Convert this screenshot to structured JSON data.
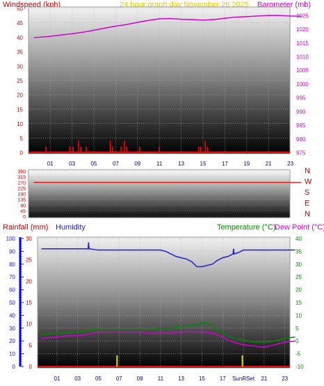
{
  "header": {
    "windspeed_label": "Windspeed (kph)",
    "title": "24 hour graph day   November 26 2025",
    "barometer_label": "Barometer (mb)"
  },
  "colors": {
    "windspeed_label": "#cc0000",
    "title": "#e6c800",
    "barometer": "#d000d0",
    "wind": "#ff0000",
    "direction": "#ff0000",
    "compass": "#c00000",
    "rainfall_label": "#cc0000",
    "humidity": "#2020d0",
    "temperature": "#008800",
    "dew_point": "#d000d0",
    "rain_marker": "#e0e000"
  },
  "chart_data": [
    {
      "type": "bar",
      "panel": "wind-barometer",
      "xlabel": "",
      "x_ticks": [
        "01",
        "03",
        "05",
        "07",
        "09",
        "11",
        "13",
        "15",
        "17",
        "19",
        "21",
        "23"
      ],
      "xlim": [
        0,
        24
      ],
      "ylabel": "Windspeed (kph)",
      "ylim": [
        0,
        50
      ],
      "y_ticks": [
        0,
        5,
        10,
        15,
        20,
        25,
        30,
        35,
        40,
        45,
        50
      ],
      "y2label": "Barometer (mb)",
      "y2lim": [
        975,
        1027.5
      ],
      "y2_ticks": [
        975,
        980,
        985,
        990,
        995,
        1000,
        1005,
        1010,
        1015,
        1020,
        1025
      ],
      "series": [
        {
          "name": "Windspeed (kph)",
          "type": "bar",
          "axis": "left",
          "x": [
            0.6,
            2.8,
            3.1,
            3.6,
            3.8,
            4.3,
            6.5,
            6.7,
            7.5,
            7.8,
            8.0,
            9.2,
            11.0,
            14.6,
            14.8,
            15.2,
            15.4
          ],
          "values": [
            2,
            2,
            2,
            4,
            2,
            2,
            4,
            2,
            2,
            4,
            2,
            2,
            2,
            2,
            2,
            4,
            2
          ]
        },
        {
          "name": "Barometer (mb)",
          "type": "line",
          "axis": "right",
          "x": [
            -0.5,
            1,
            2,
            3,
            4,
            5,
            6,
            7,
            8,
            9,
            10,
            11,
            12,
            13,
            14,
            15,
            16,
            17,
            18,
            19,
            20,
            21,
            22,
            23,
            24
          ],
          "values": [
            1016.8,
            1017.3,
            1017.8,
            1018.2,
            1018.8,
            1019.5,
            1020.3,
            1021.0,
            1021.6,
            1022.4,
            1023.1,
            1023.7,
            1023.8,
            1023.5,
            1023.4,
            1023.2,
            1023.4,
            1023.9,
            1024.3,
            1024.5,
            1024.7,
            1024.9,
            1024.9,
            1024.7,
            1024.6
          ]
        }
      ]
    },
    {
      "type": "line",
      "panel": "wind-direction",
      "ylim": [
        0,
        360
      ],
      "y_ticks": [
        0,
        45,
        90,
        135,
        180,
        225,
        270,
        315,
        360
      ],
      "compass": [
        "N",
        "W",
        "S",
        "E",
        "N"
      ],
      "series": [
        {
          "name": "Wind direction",
          "x": [
            -0.5,
            24
          ],
          "values": [
            270,
            270
          ]
        }
      ]
    },
    {
      "type": "line",
      "panel": "temperature-humidity",
      "x_ticks": [
        "01",
        "03",
        "05",
        "07",
        "09",
        "11",
        "13",
        "15",
        "17",
        "SunRSet",
        "21",
        "23"
      ],
      "xlim": [
        0,
        24
      ],
      "humidity_label": "Humidity",
      "humidity_ticks": [
        0,
        10,
        20,
        30,
        40,
        50,
        60,
        70,
        80,
        90,
        100
      ],
      "rainfall_label": "Rainfall (mm)",
      "rainfall_ticks": [
        0,
        5,
        10,
        15,
        20,
        25,
        30
      ],
      "temperature_label": "Temperature (°C)",
      "dewpoint_label": "Dew Point (°C)",
      "temp_ticks": [
        -10,
        -5,
        0,
        5,
        10,
        15,
        20,
        25,
        30,
        35,
        40
      ],
      "templim": [
        -10,
        40
      ],
      "series": [
        {
          "name": "Humidity",
          "axis": "humidity",
          "x": [
            -0.5,
            1,
            2,
            3,
            4,
            4.05,
            4.1,
            5,
            6,
            7,
            8,
            9,
            10,
            11,
            11.5,
            12,
            12.5,
            13,
            13.5,
            14,
            14.5,
            15,
            15.5,
            16,
            16.5,
            17,
            17.5,
            18,
            18.05,
            18.1,
            18.5,
            19,
            20,
            21,
            22,
            23,
            24
          ],
          "values": [
            92,
            92,
            92,
            92,
            92,
            97,
            92,
            91,
            91,
            91,
            91,
            91,
            91,
            91,
            90,
            88,
            86,
            85,
            84,
            82,
            78,
            78,
            79,
            80,
            83,
            85,
            86,
            88,
            92,
            88,
            89,
            91,
            91,
            91,
            91,
            91,
            91
          ]
        },
        {
          "name": "Temperature (°C)",
          "axis": "temp",
          "x": [
            -0.5,
            1,
            2,
            3,
            4,
            5,
            6,
            7,
            8,
            9,
            10,
            11,
            12,
            13,
            14,
            15,
            15.5,
            16,
            17,
            18,
            19,
            20,
            21,
            22,
            23,
            24
          ],
          "values": [
            2.5,
            3,
            3,
            3.5,
            4,
            4.5,
            4.5,
            4.5,
            4.5,
            4.5,
            4.5,
            5,
            5,
            5.5,
            6,
            7,
            7,
            6,
            3,
            1,
            0.5,
            -0.5,
            -0.5,
            0,
            1,
            1.5
          ]
        },
        {
          "name": "Dew Point (°C)",
          "axis": "temp",
          "x": [
            -0.5,
            1,
            2,
            3,
            4,
            5,
            6,
            7,
            8,
            9,
            10,
            11,
            12,
            13,
            14,
            15,
            16,
            17,
            18,
            19,
            20,
            21,
            22,
            23,
            24
          ],
          "values": [
            1,
            1.5,
            2,
            2,
            2.5,
            3.5,
            3.5,
            3.5,
            3.5,
            3.5,
            3,
            3,
            3,
            3.5,
            3.5,
            3.5,
            3,
            1.5,
            -0.5,
            -1.5,
            -2,
            -2.5,
            -1.5,
            -0.5,
            0
          ]
        },
        {
          "name": "Rain markers",
          "type": "marker",
          "x": [
            6.8,
            18.9
          ]
        }
      ]
    }
  ]
}
